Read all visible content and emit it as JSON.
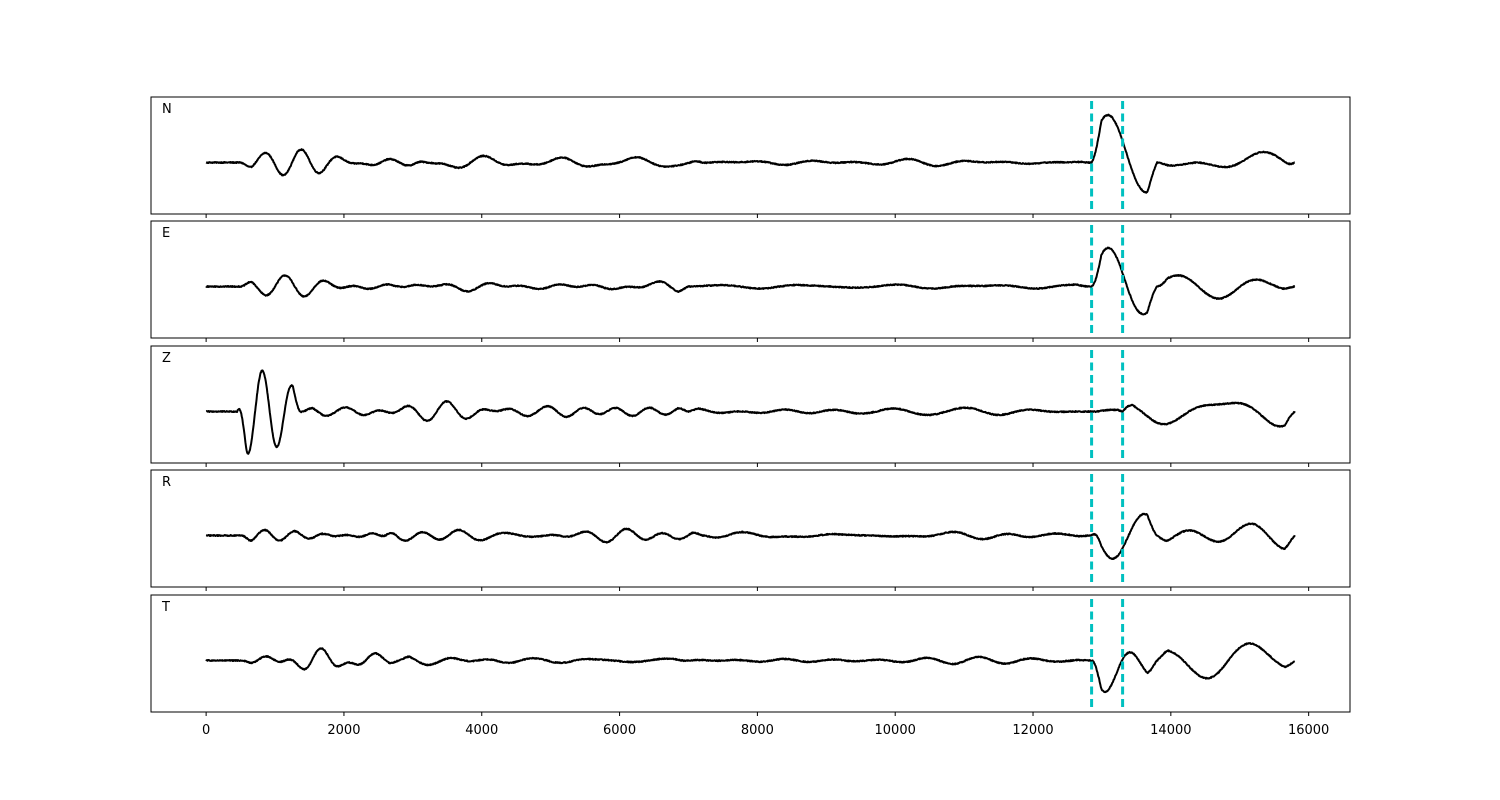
{
  "chart_data": {
    "type": "line",
    "title": "",
    "xlabel": "",
    "ylabel": "",
    "xlim": [
      -800,
      16600
    ],
    "x_ticks": [
      0,
      2000,
      4000,
      6000,
      8000,
      10000,
      12000,
      14000,
      16000
    ],
    "x_tick_labels": [
      "0",
      "2000",
      "4000",
      "6000",
      "8000",
      "10000",
      "12000",
      "14000",
      "16000"
    ],
    "x_range": [
      0,
      15800
    ],
    "grid": false,
    "line_color": "#000000",
    "marker_color": "#00c0c0",
    "vertical_markers": [
      12850,
      13300
    ],
    "panels": [
      {
        "label": "N",
        "components": [
          {
            "start": 500,
            "end": 3200,
            "amp": 0.22,
            "freq": 0.012
          },
          {
            "start": 3200,
            "end": 7200,
            "amp": 0.12,
            "freq": 0.009
          },
          {
            "start": 7200,
            "end": 12800,
            "amp": 0.07,
            "freq": 0.007
          },
          {
            "start": 12850,
            "end": 13800,
            "amp": 0.85,
            "freq": 0.006
          },
          {
            "start": 13800,
            "end": 15800,
            "amp": 0.3,
            "freq": 0.005
          }
        ]
      },
      {
        "label": "E",
        "components": [
          {
            "start": 500,
            "end": 2800,
            "amp": 0.2,
            "freq": 0.012
          },
          {
            "start": 2800,
            "end": 7000,
            "amp": 0.12,
            "freq": 0.009
          },
          {
            "start": 7000,
            "end": 12800,
            "amp": 0.07,
            "freq": 0.007
          },
          {
            "start": 12850,
            "end": 13800,
            "amp": 0.8,
            "freq": 0.006
          },
          {
            "start": 13800,
            "end": 15800,
            "amp": 0.35,
            "freq": 0.005
          }
        ]
      },
      {
        "label": "Z",
        "components": [
          {
            "start": 450,
            "end": 1400,
            "amp": 0.95,
            "freq": 0.014
          },
          {
            "start": 1400,
            "end": 7000,
            "amp": 0.18,
            "freq": 0.01
          },
          {
            "start": 7000,
            "end": 12800,
            "amp": 0.12,
            "freq": 0.008
          },
          {
            "start": 12850,
            "end": 13300,
            "amp": 0.1,
            "freq": 0.007
          },
          {
            "start": 13300,
            "end": 15800,
            "amp": 0.38,
            "freq": 0.005
          }
        ]
      },
      {
        "label": "R",
        "components": [
          {
            "start": 500,
            "end": 2600,
            "amp": 0.25,
            "freq": 0.012
          },
          {
            "start": 2600,
            "end": 7200,
            "amp": 0.13,
            "freq": 0.009
          },
          {
            "start": 7200,
            "end": 12800,
            "amp": 0.07,
            "freq": 0.007
          },
          {
            "start": 12850,
            "end": 13800,
            "amp": 0.78,
            "freq": 0.006
          },
          {
            "start": 13800,
            "end": 15800,
            "amp": 0.3,
            "freq": 0.005
          }
        ]
      },
      {
        "label": "T",
        "components": [
          {
            "start": 500,
            "end": 2800,
            "amp": 0.2,
            "freq": 0.012
          },
          {
            "start": 2800,
            "end": 7000,
            "amp": 0.12,
            "freq": 0.009
          },
          {
            "start": 7000,
            "end": 12800,
            "amp": 0.06,
            "freq": 0.007
          },
          {
            "start": 12850,
            "end": 13800,
            "amp": 0.85,
            "freq": 0.006
          },
          {
            "start": 13800,
            "end": 15800,
            "amp": 0.35,
            "freq": 0.005
          }
        ]
      }
    ]
  }
}
